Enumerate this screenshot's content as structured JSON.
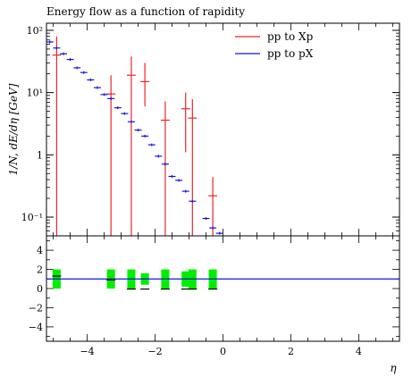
{
  "chart_data": {
    "type": "scatter",
    "title": "Energy flow as a function of rapidity",
    "xlabel": "η",
    "ylabel": "1/N, dE/dη [GeV]",
    "xlim": [
      -5.2,
      5.2
    ],
    "ylim": [
      0.05,
      130
    ],
    "yscale": "log",
    "ratio_ylim": [
      -5.5,
      5.5
    ],
    "ratio_yticks": [
      -4,
      -2,
      0,
      2,
      4
    ],
    "ratio_tick_labels": [
      "−4",
      "−2",
      "0",
      "2",
      "4"
    ],
    "xticks": [
      -4,
      -2,
      0,
      2,
      4
    ],
    "x_tick_labels": [
      "−4",
      "−2",
      "0",
      "2",
      "4"
    ],
    "yticks": [
      0.1,
      1,
      10,
      100
    ],
    "y_tick_labels": [
      "10⁻¹",
      "1",
      "10¹",
      "10²"
    ],
    "legend_position": "top-right",
    "colors": {
      "red": "#e8262a",
      "blue": "#1515d8",
      "green": "#00ee00"
    },
    "series": [
      {
        "name": "pp to Xp",
        "color": "#e8262a",
        "points": [
          {
            "x": -4.9,
            "y": 40.0,
            "xerr": 0.13,
            "ylo": 0.05,
            "yhi": 80.0
          },
          {
            "x": -3.3,
            "y": 9.5,
            "xerr": 0.13,
            "ylo": 0.05,
            "yhi": 19.0
          },
          {
            "x": -2.7,
            "y": 19.0,
            "xerr": 0.13,
            "ylo": 0.05,
            "yhi": 38.0
          },
          {
            "x": -2.3,
            "y": 15.0,
            "xerr": 0.13,
            "ylo": 6.0,
            "yhi": 30.0
          },
          {
            "x": -1.7,
            "y": 3.6,
            "xerr": 0.13,
            "ylo": 0.05,
            "yhi": 7.2
          },
          {
            "x": -1.1,
            "y": 5.5,
            "xerr": 0.13,
            "ylo": 1.1,
            "yhi": 10.0
          },
          {
            "x": -0.9,
            "y": 3.9,
            "xerr": 0.13,
            "ylo": 0.05,
            "yhi": 7.8
          },
          {
            "x": -0.3,
            "y": 0.22,
            "xerr": 0.13,
            "ylo": 0.05,
            "yhi": 0.44
          }
        ]
      },
      {
        "name": "pp to pX",
        "color": "#1515d8",
        "points": [
          {
            "x": -5.1,
            "y": 65.0
          },
          {
            "x": -4.9,
            "y": 52.0
          },
          {
            "x": -4.7,
            "y": 42.0
          },
          {
            "x": -4.5,
            "y": 34.0
          },
          {
            "x": -4.3,
            "y": 25.0
          },
          {
            "x": -4.1,
            "y": 21.0
          },
          {
            "x": -3.9,
            "y": 16.0
          },
          {
            "x": -3.7,
            "y": 12.0
          },
          {
            "x": -3.5,
            "y": 9.3
          },
          {
            "x": -3.3,
            "y": 8.0
          },
          {
            "x": -3.1,
            "y": 5.7
          },
          {
            "x": -2.9,
            "y": 4.6
          },
          {
            "x": -2.7,
            "y": 3.4
          },
          {
            "x": -2.5,
            "y": 2.5
          },
          {
            "x": -2.3,
            "y": 2.0
          },
          {
            "x": -2.1,
            "y": 1.45
          },
          {
            "x": -1.9,
            "y": 0.95
          },
          {
            "x": -1.7,
            "y": 0.71
          },
          {
            "x": -1.5,
            "y": 0.45
          },
          {
            "x": -1.3,
            "y": 0.39
          },
          {
            "x": -1.1,
            "y": 0.26
          },
          {
            "x": -0.9,
            "y": 0.18
          },
          {
            "x": -0.5,
            "y": 0.095
          },
          {
            "x": -0.3,
            "y": 0.067
          },
          {
            "x": -0.1,
            "y": 0.055
          }
        ]
      }
    ],
    "ratio": {
      "reference_value": 1.0,
      "bands": [
        {
          "x": -4.9,
          "lo": 0.0,
          "hi": 2.0
        },
        {
          "x": -3.3,
          "lo": 0.0,
          "hi": 2.0
        },
        {
          "x": -2.7,
          "lo": 0.0,
          "hi": 2.0
        },
        {
          "x": -2.3,
          "lo": 0.4,
          "hi": 1.6
        },
        {
          "x": -1.7,
          "lo": 0.0,
          "hi": 2.0
        },
        {
          "x": -1.1,
          "lo": 0.2,
          "hi": 1.8
        },
        {
          "x": -0.9,
          "lo": 0.0,
          "hi": 2.0
        },
        {
          "x": -0.3,
          "lo": 0.0,
          "hi": 2.0
        }
      ],
      "points": [
        {
          "x": -4.9,
          "y": 1.3
        },
        {
          "x": -3.3,
          "y": 0.9
        },
        {
          "x": -2.7,
          "y": -0.05
        },
        {
          "x": -2.3,
          "y": -0.05
        },
        {
          "x": -1.7,
          "y": -0.05
        },
        {
          "x": -1.1,
          "y": -0.05
        },
        {
          "x": -0.9,
          "y": -0.05
        },
        {
          "x": -0.3,
          "y": -0.05
        }
      ]
    }
  }
}
